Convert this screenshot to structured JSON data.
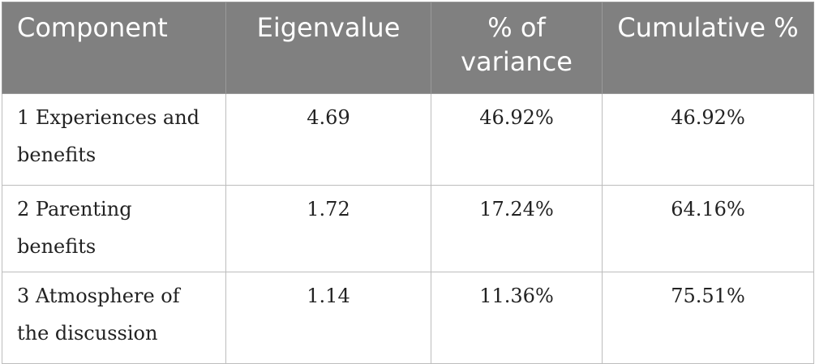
{
  "table": {
    "headers": [
      "Component",
      "Eigenvalue",
      "% of variance",
      "Cumulative %"
    ],
    "rows": [
      {
        "component": "1 Experiences and benefits",
        "eigenvalue": "4.69",
        "variance": "46.92%",
        "cumulative": "46.92%"
      },
      {
        "component": "2 Parenting benefits",
        "eigenvalue": "1.72",
        "variance": "17.24%",
        "cumulative": "64.16%"
      },
      {
        "component": "3 Atmosphere of the discussion",
        "eigenvalue": "1.14",
        "variance": "11.36%",
        "cumulative": "75.51%"
      }
    ]
  },
  "colors": {
    "header_bg": "#808080",
    "header_text": "#ffffff",
    "border": "#bdbdbd"
  }
}
